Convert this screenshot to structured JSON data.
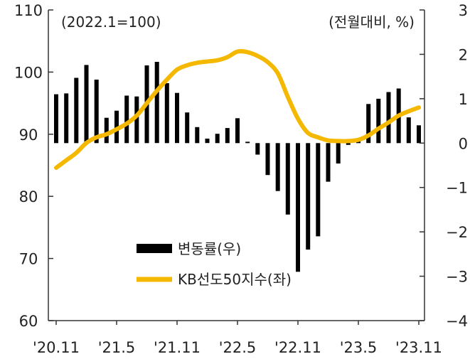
{
  "chart_data": {
    "type": "bar+line",
    "note_left": "(2022.1=100)",
    "note_right": "(전월대비, %)",
    "x_ticks": [
      "'20.11",
      "'21.5",
      "'21.11",
      "'22.5",
      "'22.11",
      "'23.5",
      "'23.11"
    ],
    "categories": [
      "20.11",
      "20.12",
      "21.1",
      "21.2",
      "21.3",
      "21.4",
      "21.5",
      "21.6",
      "21.7",
      "21.8",
      "21.9",
      "21.10",
      "21.11",
      "21.12",
      "22.1",
      "22.2",
      "22.3",
      "22.4",
      "22.5",
      "22.6",
      "22.7",
      "22.8",
      "22.9",
      "22.10",
      "22.11",
      "22.12",
      "23.1",
      "23.2",
      "23.3",
      "23.4",
      "23.5",
      "23.6",
      "23.7",
      "23.8",
      "23.9",
      "23.10",
      "23.11"
    ],
    "y_left": {
      "min": 60,
      "max": 110,
      "ticks": [
        60,
        70,
        80,
        90,
        100,
        110
      ]
    },
    "y_right": {
      "min": -4,
      "max": 3,
      "ticks": [
        -4,
        -3,
        -2,
        -1,
        0,
        1,
        2,
        3
      ]
    },
    "series": [
      {
        "name": "변동률(우)",
        "type": "bar",
        "axis": "right",
        "color": "#000000",
        "values": [
          1.1,
          1.12,
          1.47,
          1.76,
          1.43,
          0.57,
          0.73,
          1.07,
          1.05,
          1.75,
          1.83,
          1.35,
          1.13,
          0.69,
          0.36,
          0.1,
          0.21,
          0.34,
          0.56,
          0.03,
          -0.26,
          -0.72,
          -1.08,
          -1.61,
          -2.9,
          -2.4,
          -2.1,
          -0.87,
          -0.46,
          -0.04,
          0.04,
          0.88,
          1.0,
          1.15,
          1.23,
          0.58,
          0.4
        ]
      },
      {
        "name": "KB선도50지수(좌)",
        "type": "line",
        "axis": "left",
        "color": "#F5B800",
        "values": [
          84.6,
          85.8,
          87.0,
          88.6,
          89.5,
          90.0,
          90.8,
          91.7,
          93.0,
          95.0,
          97.0,
          98.8,
          100.4,
          101.1,
          101.5,
          101.7,
          101.9,
          102.4,
          103.3,
          103.2,
          102.6,
          101.6,
          99.8,
          96.0,
          92.5,
          90.2,
          89.5,
          89.0,
          88.9,
          88.9,
          89.1,
          89.8,
          90.9,
          91.9,
          93.0,
          93.7,
          94.3
        ]
      }
    ],
    "legend": {
      "placement": "bottom-center"
    }
  },
  "colors": {
    "bars": "#000000",
    "line": "#F5B800",
    "axis": "#333333"
  }
}
